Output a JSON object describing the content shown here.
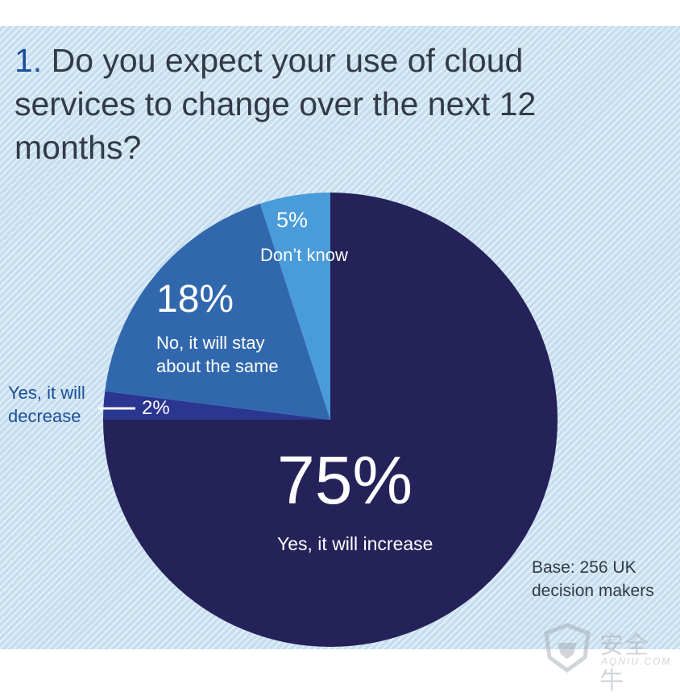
{
  "title": {
    "number": "1.",
    "lines": [
      "Do you expect your use of cloud",
      "services to change over the next 12",
      "months?"
    ]
  },
  "chart_data": {
    "type": "pie",
    "start": "12 o'clock, clockwise",
    "slices": [
      {
        "label": "Yes, it will increase",
        "pct_text": "75%",
        "value": 75,
        "color": "#252259"
      },
      {
        "label": "Yes, it will decrease",
        "pct_text": "2%",
        "value": 2,
        "color": "#2b3691"
      },
      {
        "label": "No, it will stay about the same",
        "pct_text": "18%",
        "value": 18,
        "color": "#3168ad"
      },
      {
        "label": "Don't know",
        "pct_text": "5%",
        "value": 5,
        "color": "#4a9bd9"
      }
    ],
    "labels": {
      "increase": "Yes, it will increase",
      "same": [
        "No, it will stay",
        "about the same"
      ],
      "dontknow": "Don’t know",
      "decrease": [
        "Yes, it will",
        "decrease"
      ]
    }
  },
  "base": [
    "Base: 256 UK",
    "decision makers"
  ],
  "watermark": {
    "cn": "安全牛",
    "en": "AQNIU.COM"
  }
}
